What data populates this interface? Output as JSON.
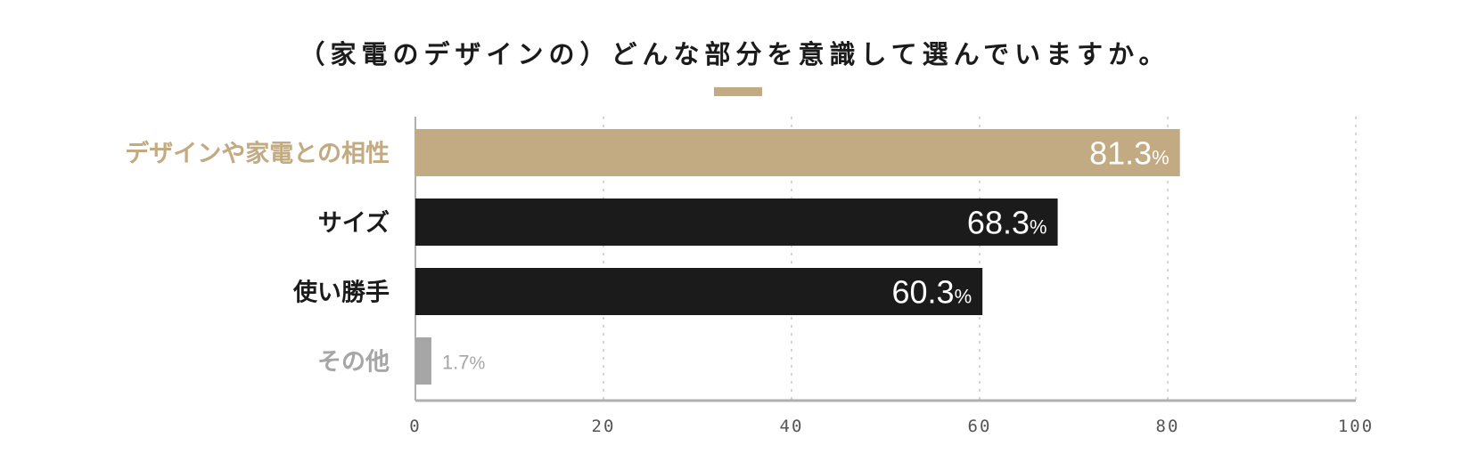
{
  "chart_data": {
    "type": "bar",
    "orientation": "horizontal",
    "title": "（家電のデザインの）どんな部分を意識して選んでいますか。",
    "categories": [
      "デザインや家電との相性",
      "サイズ",
      "使い勝手",
      "その他"
    ],
    "values": [
      81.3,
      68.3,
      60.3,
      1.7
    ],
    "value_labels": [
      "81.3",
      "68.3",
      "60.3",
      "1.7"
    ],
    "unit": "%",
    "xlim": [
      0,
      100
    ],
    "xticks": [
      "0",
      "20",
      "40",
      "60",
      "80",
      "100"
    ],
    "grid": "vertical dotted",
    "colors": [
      "#c2aa82",
      "#1c1b1b",
      "#1c1b1b",
      "#a6a6a6"
    ],
    "label_colors": [
      "#c2aa82",
      "#1c1b1b",
      "#1c1b1b",
      "#a6a6a6"
    ],
    "accent_color": "#c2aa82"
  }
}
